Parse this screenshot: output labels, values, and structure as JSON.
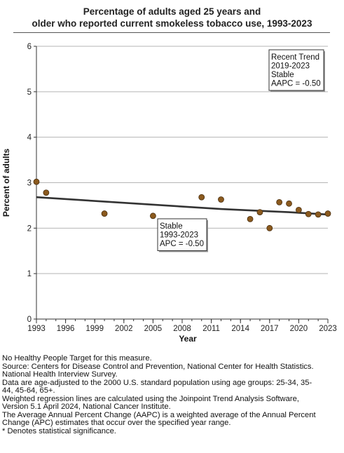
{
  "title_lines": [
    "Percentage of adults aged 25 years and",
    "older who reported current smokeless tobacco use, 1993-2023"
  ],
  "chart_data": {
    "type": "scatter",
    "xlabel": "Year",
    "ylabel": "Percent of adults",
    "xlim": [
      1993,
      2023
    ],
    "ylim": [
      0,
      6
    ],
    "x_ticks": [
      1993,
      1996,
      1999,
      2002,
      2005,
      2008,
      2011,
      2014,
      2017,
      2020,
      2023
    ],
    "y_ticks": [
      0,
      1,
      2,
      3,
      4,
      5,
      6
    ],
    "grid": true,
    "points": [
      {
        "x": 1993,
        "y": 3.02
      },
      {
        "x": 1994,
        "y": 2.78
      },
      {
        "x": 2000,
        "y": 2.32
      },
      {
        "x": 2005,
        "y": 2.27
      },
      {
        "x": 2010,
        "y": 2.68
      },
      {
        "x": 2012,
        "y": 2.63
      },
      {
        "x": 2015,
        "y": 2.2
      },
      {
        "x": 2016,
        "y": 2.35
      },
      {
        "x": 2017,
        "y": 2.0
      },
      {
        "x": 2018,
        "y": 2.57
      },
      {
        "x": 2019,
        "y": 2.54
      },
      {
        "x": 2020,
        "y": 2.4
      },
      {
        "x": 2021,
        "y": 2.31
      },
      {
        "x": 2022,
        "y": 2.3
      },
      {
        "x": 2023,
        "y": 2.32
      }
    ],
    "trend_line": [
      {
        "x": 1993,
        "y": 2.68
      },
      {
        "x": 2012,
        "y": 2.42
      },
      {
        "x": 2019,
        "y": 2.35
      },
      {
        "x": 2023,
        "y": 2.3
      }
    ],
    "annotations": [
      {
        "anchor": "upper-right",
        "lines": [
          "Recent Trend",
          "2019-2023",
          "Stable",
          "AAPC = -0.50"
        ]
      },
      {
        "anchor": "middle",
        "lines": [
          "Stable",
          "1993-2023",
          "APC = -0.50"
        ]
      }
    ],
    "colors": {
      "marker": "#8b5a1e",
      "marker_edge": "#4a2f10",
      "trend": "#333333",
      "grid": "#b5b5b5"
    }
  },
  "footnotes": [
    "No Healthy People Target for this measure.",
    "Source: Centers for Disease Control and Prevention, National Center for Health Statistics.",
    "National Health Interview Survey.",
    "Data are age-adjusted to the 2000 U.S. standard population using age groups: 25-34, 35-",
    "44, 45-64, 65+.",
    "Weighted regression lines are calculated using the Joinpoint Trend Analysis Software,",
    "Version 5.1 April 2024, National Cancer Institute.",
    "The Average Annual Percent Change (AAPC) is a weighted average of the Annual Percent",
    "Change (APC) estimates that occur over the specified year range.",
    "* Denotes statistical significance."
  ]
}
